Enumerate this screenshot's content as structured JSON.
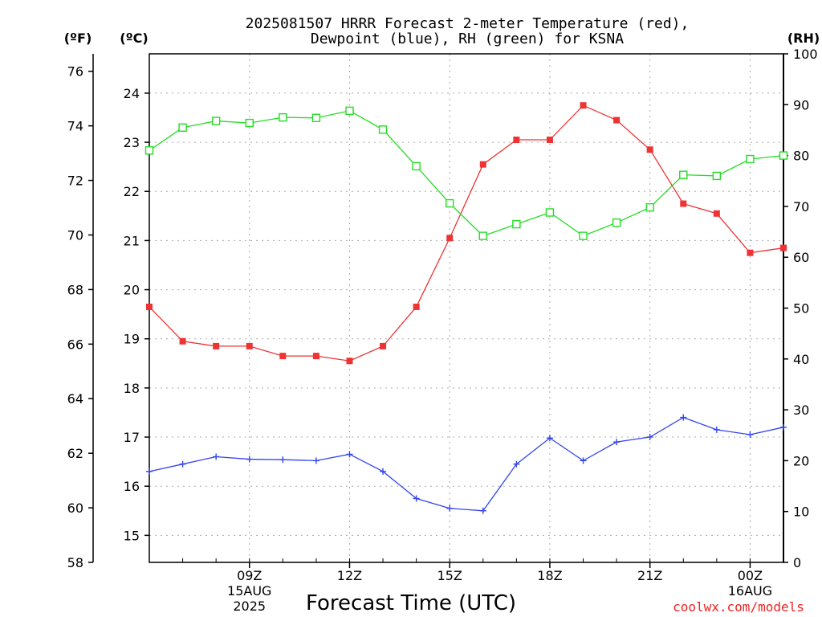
{
  "title_line1": "2025081507 HRRR Forecast 2-meter Temperature (red),",
  "title_line2": "Dewpoint (blue), RH (green) for KSNA",
  "unit_left_outer": "(ºF)",
  "unit_left_inner": "(ºC)",
  "unit_right": "(RH)",
  "xlabel": "Forecast Time (UTC)",
  "credit": "coolwx.com/models",
  "colors": {
    "temperature": "#ee3333",
    "dewpoint": "#3344ee",
    "rh": "#22dd22",
    "credit": "#ee2222"
  },
  "chart_data": {
    "type": "line",
    "x_hours_utc": [
      6,
      7,
      8,
      9,
      10,
      11,
      12,
      13,
      14,
      15,
      16,
      17,
      18,
      19,
      20,
      21,
      22,
      23,
      24,
      25
    ],
    "x_tick_labels": [
      {
        "hour": 9,
        "lines": [
          "09Z",
          "15AUG",
          "2025"
        ]
      },
      {
        "hour": 12,
        "lines": [
          "12Z"
        ]
      },
      {
        "hour": 15,
        "lines": [
          "15Z"
        ]
      },
      {
        "hour": 18,
        "lines": [
          "18Z"
        ]
      },
      {
        "hour": 21,
        "lines": [
          "21Z"
        ]
      },
      {
        "hour": 24,
        "lines": [
          "00Z",
          "16AUG"
        ]
      }
    ],
    "xlim_hours": [
      6,
      25
    ],
    "yaxis_celsius": {
      "ylim": [
        14.45,
        24.8
      ],
      "ticks": [
        15,
        16,
        17,
        18,
        19,
        20,
        21,
        22,
        23,
        24
      ]
    },
    "yaxis_fahrenheit": {
      "ylim": [
        58.0,
        76.64
      ],
      "ticks": [
        58,
        60,
        62,
        64,
        66,
        68,
        70,
        72,
        74,
        76
      ]
    },
    "yaxis_rh": {
      "ylim": [
        0,
        100
      ],
      "ticks": [
        0,
        10,
        20,
        30,
        40,
        50,
        60,
        70,
        80,
        90,
        100
      ]
    },
    "grid": true,
    "series": [
      {
        "name": "Temperature",
        "axis": "celsius",
        "marker": "filled-square",
        "values": [
          19.65,
          18.95,
          18.85,
          18.85,
          18.65,
          18.65,
          18.55,
          18.85,
          19.65,
          21.05,
          22.55,
          23.05,
          23.05,
          23.75,
          23.45,
          22.85,
          21.75,
          21.55,
          20.75,
          20.85
        ]
      },
      {
        "name": "Dewpoint",
        "axis": "celsius",
        "marker": "plus",
        "values": [
          16.3,
          16.45,
          16.6,
          16.55,
          16.54,
          16.52,
          16.65,
          16.3,
          15.75,
          15.55,
          15.5,
          16.45,
          16.98,
          16.52,
          16.9,
          17.0,
          17.4,
          17.15,
          17.05,
          17.2
        ]
      },
      {
        "name": "RH",
        "axis": "rh",
        "marker": "open-square",
        "values": [
          81.0,
          85.5,
          86.8,
          86.4,
          87.5,
          87.4,
          88.8,
          85.1,
          77.9,
          70.6,
          64.2,
          66.5,
          68.8,
          64.2,
          66.8,
          69.8,
          76.2,
          76.0,
          79.3,
          80.0
        ]
      }
    ]
  }
}
